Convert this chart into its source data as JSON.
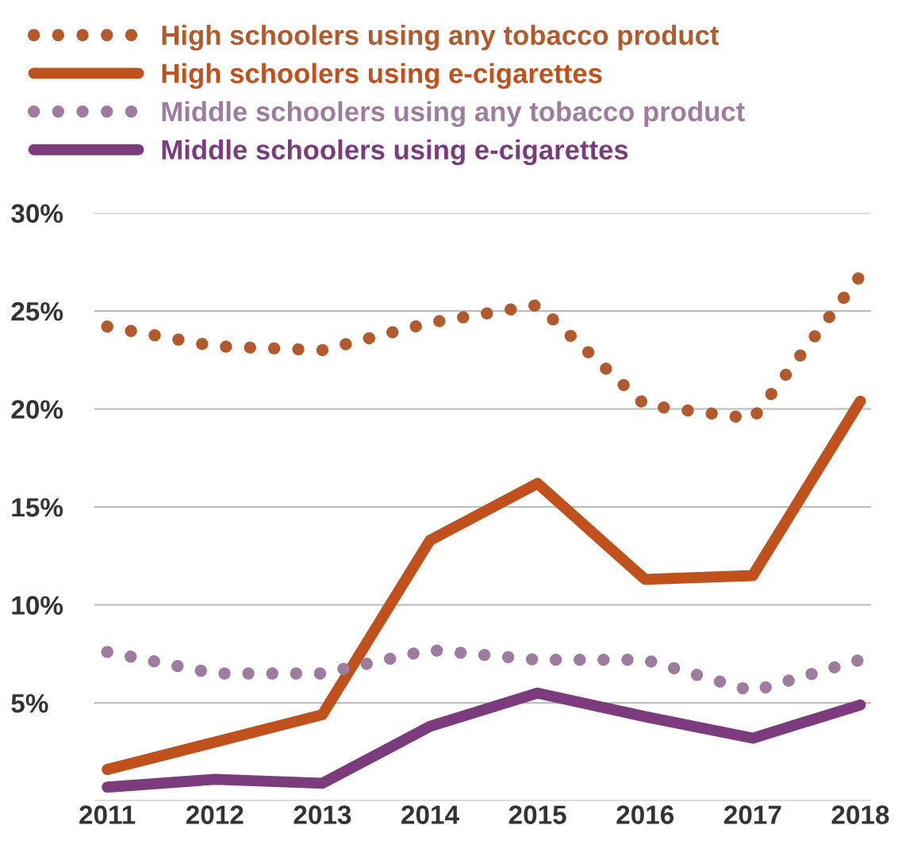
{
  "chart_data": {
    "type": "line",
    "categories": [
      "2011",
      "2012",
      "2013",
      "2014",
      "2015",
      "2016",
      "2017",
      "2018"
    ],
    "series": [
      {
        "name": "High schoolers using any tobacco product",
        "color": "#b35a2c",
        "line_style": "dotted",
        "values": [
          24.2,
          23.2,
          23.0,
          24.4,
          25.3,
          20.2,
          19.5,
          26.8
        ]
      },
      {
        "name": "High schoolers using e-cigarettes",
        "color": "#c0501c",
        "line_style": "solid",
        "values": [
          1.6,
          3.0,
          4.4,
          13.3,
          16.2,
          11.3,
          11.5,
          20.4
        ]
      },
      {
        "name": "Middle schoolers using any tobacco product",
        "color": "#9e7c9e",
        "line_style": "dotted",
        "values": [
          7.6,
          6.5,
          6.5,
          7.7,
          7.2,
          7.2,
          5.6,
          7.2
        ]
      },
      {
        "name": "Middle schoolers using e-cigarettes",
        "color": "#7b3b7d",
        "line_style": "solid",
        "values": [
          0.7,
          1.1,
          0.9,
          3.8,
          5.5,
          4.3,
          3.2,
          4.9
        ]
      }
    ],
    "ylim": [
      0,
      30
    ],
    "yticks": [
      {
        "value": 0,
        "label": null
      },
      {
        "value": 5,
        "label": "5%"
      },
      {
        "value": 10,
        "label": "10%"
      },
      {
        "value": 15,
        "label": "15%"
      },
      {
        "value": 20,
        "label": "20%"
      },
      {
        "value": 25,
        "label": "25%"
      },
      {
        "value": 30,
        "label": "30%"
      }
    ],
    "grid": "y",
    "legend": "top left",
    "marker": "none"
  }
}
